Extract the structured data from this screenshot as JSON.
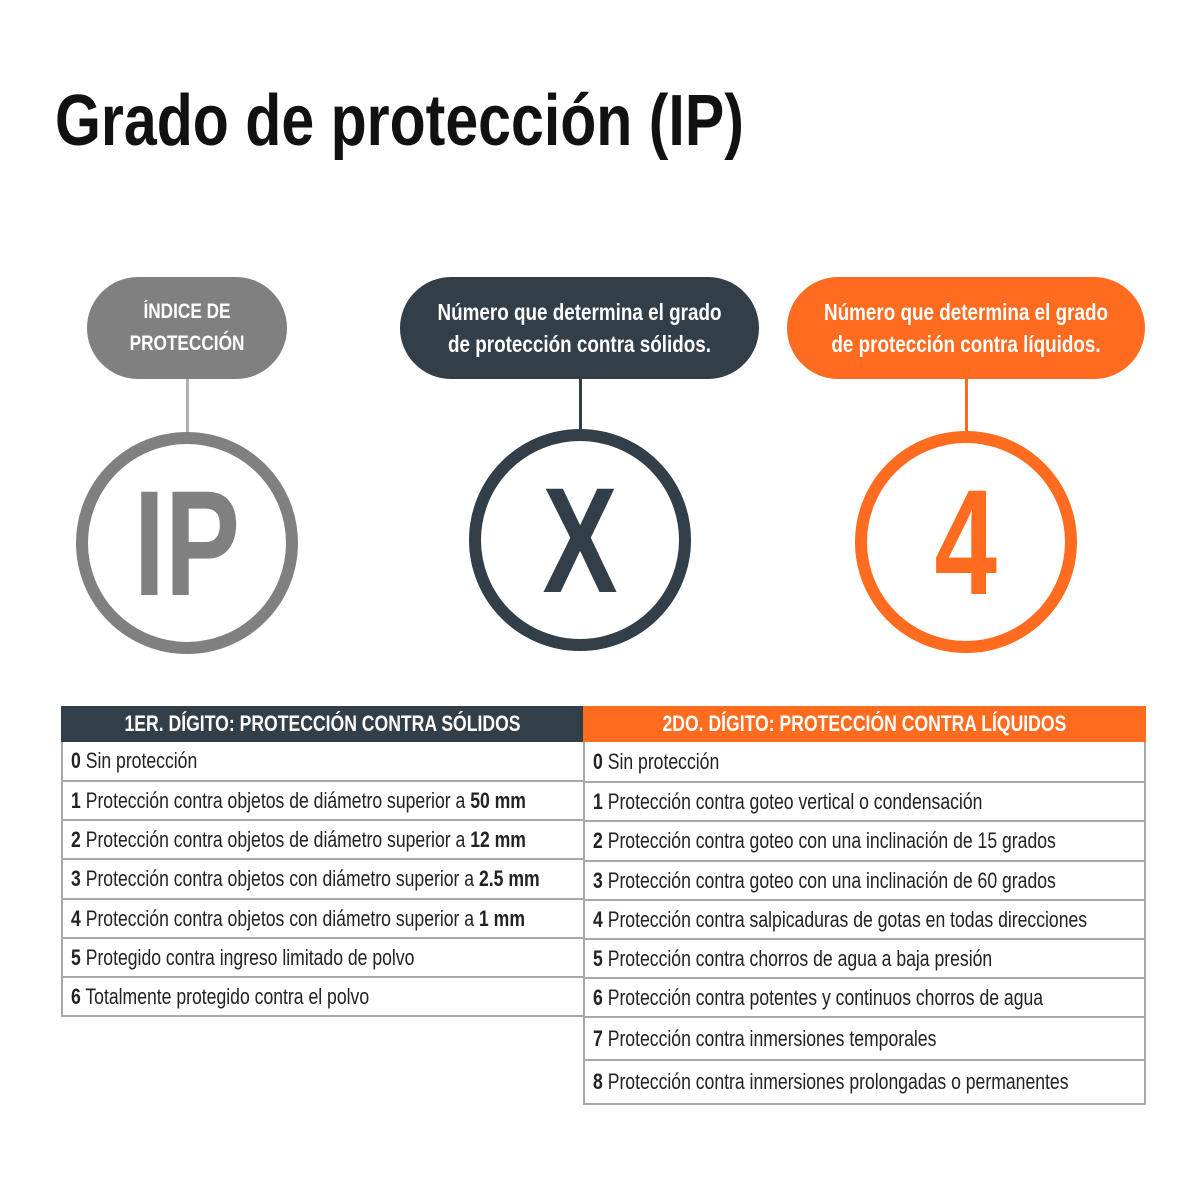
{
  "title": "Grado de protección (IP)",
  "colors": {
    "gray": "#808080",
    "dark": "#333f48",
    "orange": "#ff6b1f"
  },
  "labels": {
    "index": "ÍNDICE DE PROTECCIÓN",
    "solids": "Número que determina el grado de protección contra sólidos.",
    "liquids": "Número que determina el grado de protección contra líquidos."
  },
  "circles": {
    "ip": "IP",
    "x": "X",
    "digit": "4"
  },
  "solids_table": {
    "header": "1ER. DÍGITO: PROTECCIÓN CONTRA SÓLIDOS",
    "rows": [
      {
        "n": "0",
        "text": "Sin protección",
        "bold": ""
      },
      {
        "n": "1",
        "text": "Protección contra objetos de diámetro superior a",
        "bold": "50 mm"
      },
      {
        "n": "2",
        "text": "Protección contra objetos de diámetro superior a",
        "bold": "12 mm"
      },
      {
        "n": "3",
        "text": "Protección contra objetos con diámetro superior a",
        "bold": "2.5 mm"
      },
      {
        "n": "4",
        "text": "Protección contra objetos con diámetro superior a",
        "bold": "1 mm"
      },
      {
        "n": "5",
        "text": "Protegido contra ingreso limitado de polvo",
        "bold": ""
      },
      {
        "n": "6",
        "text": "Totalmente protegido contra el polvo",
        "bold": ""
      }
    ]
  },
  "liquids_table": {
    "header": "2DO. DÍGITO: PROTECCIÓN CONTRA LÍQUIDOS",
    "rows": [
      {
        "n": "0",
        "text": "Sin protección"
      },
      {
        "n": "1",
        "text": "Protección contra goteo vertical o condensación"
      },
      {
        "n": "2",
        "text": "Protección contra goteo con una inclinación de 15 grados"
      },
      {
        "n": "3",
        "text": "Protección contra goteo con una inclinación de 60 grados"
      },
      {
        "n": "4",
        "text": "Protección contra salpicaduras de gotas en todas direcciones"
      },
      {
        "n": "5",
        "text": "Protección contra chorros de agua a baja presión"
      },
      {
        "n": "6",
        "text": "Protección contra potentes y continuos chorros de agua"
      },
      {
        "n": "7",
        "text": "Protección contra inmersiones temporales"
      },
      {
        "n": "8",
        "text": "Protección contra inmersiones prolongadas o permanentes"
      }
    ]
  }
}
